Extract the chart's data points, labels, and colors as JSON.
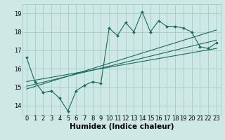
{
  "title": "",
  "xlabel": "Humidex (Indice chaleur)",
  "ylabel": "",
  "background_color": "#cde8e5",
  "grid_color": "#aacfcb",
  "line_color": "#1a6b5e",
  "x_data": [
    0,
    1,
    2,
    3,
    4,
    5,
    6,
    7,
    8,
    9,
    10,
    11,
    12,
    13,
    14,
    15,
    16,
    17,
    18,
    19,
    20,
    21,
    22,
    23
  ],
  "y_main": [
    16.6,
    15.3,
    14.7,
    14.8,
    14.4,
    13.7,
    14.8,
    15.1,
    15.3,
    15.2,
    18.2,
    17.8,
    18.5,
    18.0,
    19.1,
    18.0,
    18.6,
    18.3,
    18.3,
    18.2,
    18.0,
    17.2,
    17.1,
    17.4
  ],
  "trend1_x": [
    0,
    23
  ],
  "trend1_y": [
    15.3,
    17.1
  ],
  "trend2_x": [
    0,
    23
  ],
  "trend2_y": [
    15.05,
    17.55
  ],
  "trend3_x": [
    0,
    23
  ],
  "trend3_y": [
    14.9,
    18.1
  ],
  "xlim": [
    -0.5,
    23.5
  ],
  "ylim": [
    13.5,
    19.5
  ],
  "yticks": [
    14,
    15,
    16,
    17,
    18,
    19
  ],
  "xticks": [
    0,
    1,
    2,
    3,
    4,
    5,
    6,
    7,
    8,
    9,
    10,
    11,
    12,
    13,
    14,
    15,
    16,
    17,
    18,
    19,
    20,
    21,
    22,
    23
  ],
  "tick_fontsize": 6.0,
  "xlabel_fontsize": 7.5
}
